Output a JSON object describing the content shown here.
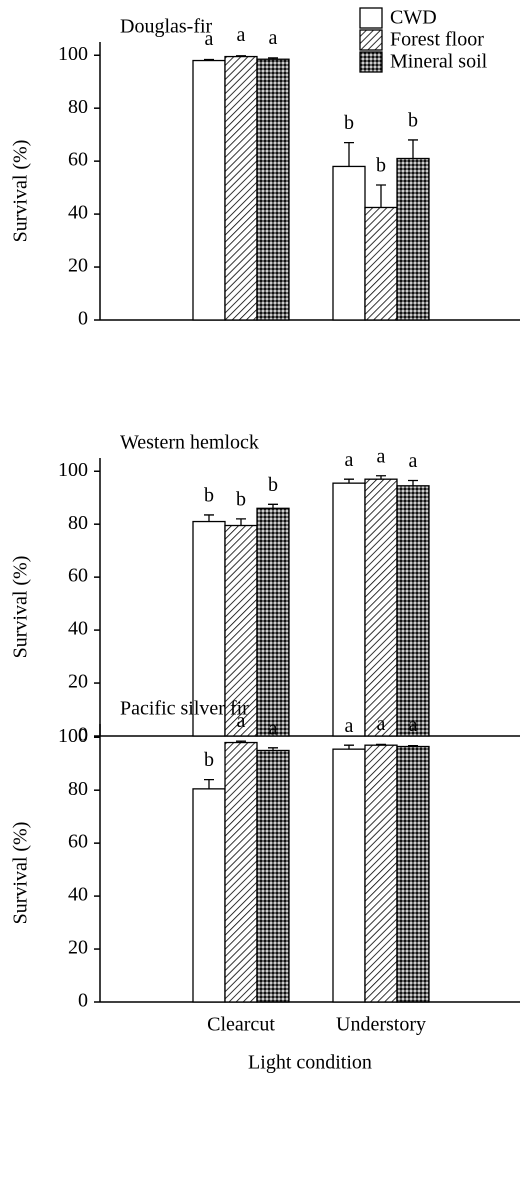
{
  "chart_data": [
    {
      "type": "bar",
      "title": "Douglas-fir",
      "ylabel": "Survival (%)",
      "categories": [
        null,
        null
      ],
      "series": [
        {
          "name": "CWD",
          "color": "#ffffff",
          "pattern": "none",
          "values": [
            98,
            58
          ],
          "errors": [
            0.4,
            9
          ],
          "labels": [
            "a",
            "b"
          ]
        },
        {
          "name": "Forest floor",
          "color": "#ffffff",
          "pattern": "hatch",
          "values": [
            99.5,
            42.5
          ],
          "errors": [
            0.3,
            8.5
          ],
          "labels": [
            "a",
            "b"
          ]
        },
        {
          "name": "Mineral soil",
          "color": "#ffffff",
          "pattern": "cross",
          "values": [
            98.5,
            61
          ],
          "errors": [
            0.5,
            7
          ],
          "labels": [
            "a",
            "b"
          ]
        }
      ],
      "ylim": [
        0,
        105
      ],
      "yticks": [
        0,
        20,
        40,
        60,
        80,
        100
      ],
      "legend": "top-right"
    },
    {
      "type": "bar",
      "title": "Western hemlock",
      "ylabel": "Survival (%)",
      "categories": [
        null,
        null
      ],
      "series": [
        {
          "color": "#ffffff",
          "pattern": "none",
          "values": [
            81,
            95.5
          ],
          "errors": [
            2.5,
            1.5
          ],
          "labels": [
            "b",
            "a"
          ]
        },
        {
          "color": "#ffffff",
          "pattern": "hatch",
          "values": [
            79.5,
            97
          ],
          "errors": [
            2.5,
            1.3
          ],
          "labels": [
            "b",
            "a"
          ]
        },
        {
          "color": "#ffffff",
          "pattern": "cross",
          "values": [
            86,
            94.5
          ],
          "errors": [
            1.5,
            2
          ],
          "labels": [
            "b",
            "a"
          ]
        }
      ],
      "ylim": [
        0,
        105
      ],
      "yticks": [
        0,
        20,
        40,
        60,
        80,
        100
      ]
    },
    {
      "type": "bar",
      "title": "Pacific silver fir",
      "ylabel": "Survival (%)",
      "xlabel": "Light condition",
      "categories": [
        "Clearcut",
        "Understory"
      ],
      "series": [
        {
          "color": "#ffffff",
          "pattern": "none",
          "values": [
            80.5,
            95.5
          ],
          "errors": [
            3.5,
            1.5
          ],
          "labels": [
            "b",
            "a"
          ]
        },
        {
          "color": "#ffffff",
          "pattern": "hatch",
          "values": [
            98,
            97
          ],
          "errors": [
            0.5,
            0.3
          ],
          "labels": [
            "a",
            "a"
          ]
        },
        {
          "color": "#ffffff",
          "pattern": "cross",
          "values": [
            95,
            96.5
          ],
          "errors": [
            1,
            0.3
          ],
          "labels": [
            "a",
            "a"
          ]
        }
      ],
      "ylim": [
        0,
        105
      ],
      "yticks": [
        0,
        20,
        40,
        60,
        80,
        100
      ]
    }
  ]
}
